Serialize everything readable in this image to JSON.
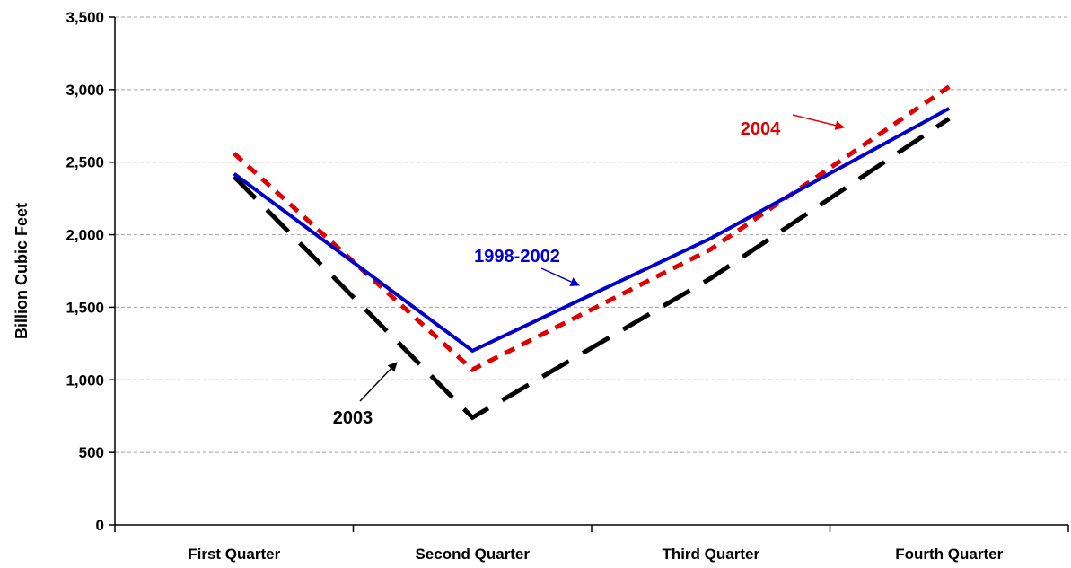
{
  "chart_data": {
    "type": "line",
    "categories": [
      "First Quarter",
      "Second Quarter",
      "Third Quarter",
      "Fourth Quarter"
    ],
    "ylabel": "Billion Cubic Feet",
    "xlabel": "",
    "ylim": [
      0,
      3500
    ],
    "yticks": [
      0,
      500,
      1000,
      1500,
      2000,
      2500,
      3000,
      3500
    ],
    "ytick_labels": [
      "0",
      "500",
      "1,000",
      "1,500",
      "2,000",
      "2,500",
      "3,000",
      "3,500"
    ],
    "grid": "horizontal dashed",
    "series": [
      {
        "name": "1998-2002",
        "values": [
          2420,
          1200,
          1975,
          2870
        ],
        "color": "#0000cc",
        "style": "solid"
      },
      {
        "name": "2003",
        "values": [
          2400,
          740,
          1700,
          2800
        ],
        "color": "#000000",
        "style": "long-dash"
      },
      {
        "name": "2004",
        "values": [
          2560,
          1070,
          1900,
          3020
        ],
        "color": "#e00000",
        "style": "short-dash"
      }
    ],
    "annotations": [
      {
        "text": "1998-2002",
        "color": "#0000cc"
      },
      {
        "text": "2003",
        "color": "#000000"
      },
      {
        "text": "2004",
        "color": "#e00000"
      }
    ]
  }
}
